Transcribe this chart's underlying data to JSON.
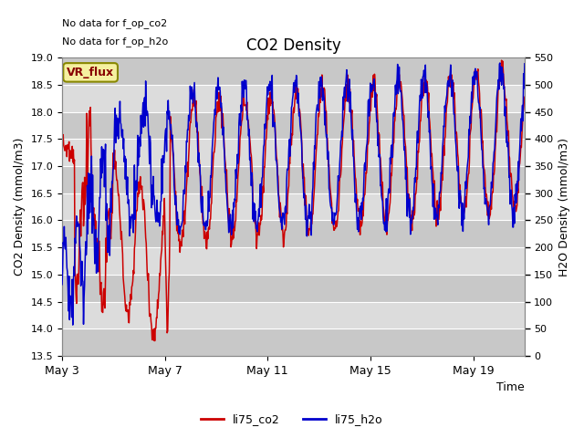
{
  "title": "CO2 Density",
  "xlabel": "Time",
  "ylabel_left": "CO2 Density (mmol/m3)",
  "ylabel_right": "H2O Density (mmol/m3)",
  "ylim_left": [
    13.5,
    19.0
  ],
  "ylim_right": [
    0,
    550
  ],
  "yticks_left": [
    13.5,
    14.0,
    14.5,
    15.0,
    15.5,
    16.0,
    16.5,
    17.0,
    17.5,
    18.0,
    18.5,
    19.0
  ],
  "yticks_right": [
    0,
    50,
    100,
    150,
    200,
    250,
    300,
    350,
    400,
    450,
    500,
    550
  ],
  "xtick_labels": [
    "May 3",
    "May 7",
    "May 11",
    "May 15",
    "May 19"
  ],
  "top_text_line1": "No data for f_op_co2",
  "top_text_line2": "No data for f_op_h2o",
  "vr_flux_label": "VR_flux",
  "legend_labels": [
    "li75_co2",
    "li75_h2o"
  ],
  "color_red": "#CC0000",
  "color_blue": "#0000CC",
  "fig_bg_color": "#FFFFFF",
  "plot_bg_color": "#E8E8E8",
  "band_light": "#DCDCDC",
  "band_dark": "#C8C8C8",
  "grid_color": "#FFFFFF",
  "vr_flux_bg": "#F5F0A0",
  "vr_flux_border": "#888800",
  "vr_flux_text": "#880000"
}
